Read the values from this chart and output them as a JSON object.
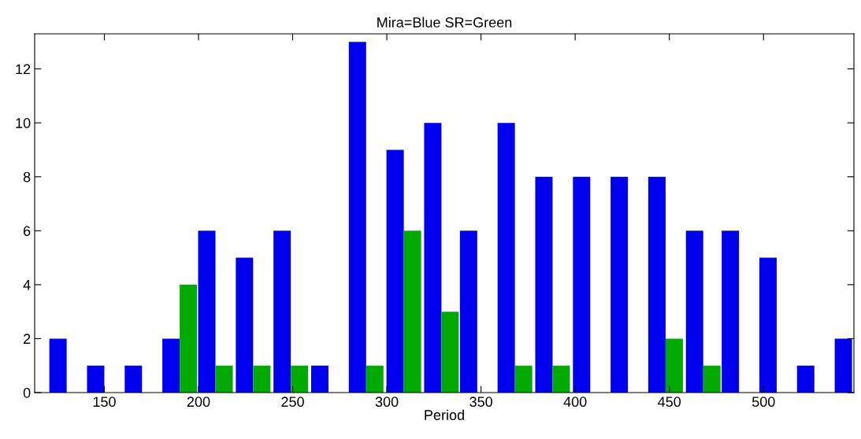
{
  "chart_data": {
    "type": "bar",
    "title": "Mira=Blue SR=Green",
    "xlabel": "Period",
    "x": [
      130,
      150,
      170,
      190,
      209,
      229,
      249,
      269,
      289,
      309,
      329,
      348,
      368,
      388,
      408,
      428,
      448,
      468,
      487,
      507,
      527,
      547
    ],
    "series": [
      {
        "color": "#0000ee",
        "values": [
          2,
          1,
          1,
          2,
          6,
          5,
          6,
          1,
          13,
          9,
          10,
          6,
          10,
          8,
          8,
          8,
          8,
          6,
          6,
          5,
          1,
          2
        ]
      },
      {
        "color": "#00aa00",
        "values": [
          0,
          0,
          0,
          4,
          1,
          1,
          1,
          0,
          1,
          6,
          3,
          0,
          1,
          1,
          0,
          0,
          2,
          1,
          0,
          0,
          0,
          0
        ]
      }
    ],
    "xlim": [
      113,
      548
    ],
    "xticks": [
      150,
      200,
      250,
      300,
      350,
      400,
      450,
      500
    ],
    "ylim": [
      0,
      13.3
    ],
    "yticks": [
      0,
      2,
      4,
      6,
      8,
      10,
      12
    ],
    "grid": false
  }
}
